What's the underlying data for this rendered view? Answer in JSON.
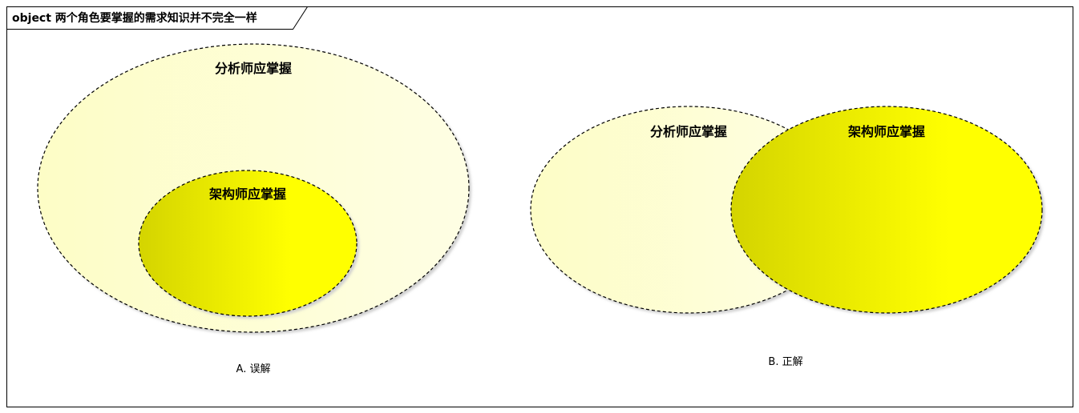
{
  "frame": {
    "title": "object 两个角色要掌握的需求知识并不完全一样"
  },
  "diagram_a": {
    "outer_label": "分析师应掌握",
    "inner_label": "架构师应掌握",
    "caption": "A. 误解"
  },
  "diagram_b": {
    "left_label": "分析师应掌握",
    "right_label": "架构师应掌握",
    "caption": "B. 正解"
  },
  "colors": {
    "light_fill_start": "#fdfdc8",
    "light_fill_end": "#fefee2",
    "strong_fill_start": "#d8d800",
    "strong_fill_end": "#ffff00",
    "stroke": "#000000",
    "shadow": "#c8c8c8"
  }
}
